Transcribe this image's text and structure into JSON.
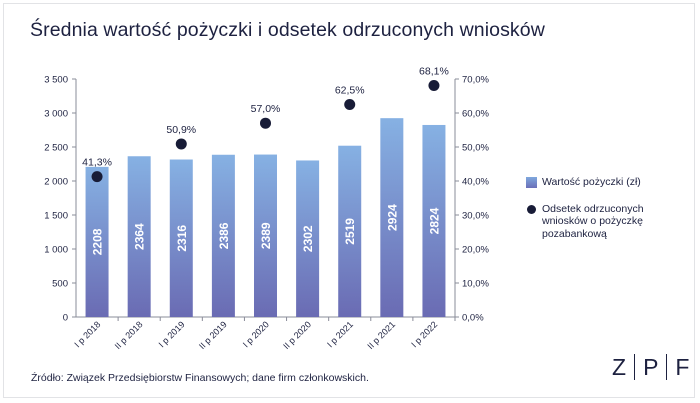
{
  "title": "Średnia wartość pożyczki i odsetek odrzuconych wniosków",
  "source": "Źródło: Związek Przedsiębiorstw Finansowych; dane firm członkowskich.",
  "logo": {
    "letters": [
      "Z",
      "P",
      "F"
    ]
  },
  "colors": {
    "bar_top": "#86b1e3",
    "bar_bottom": "#6a6bb3",
    "dot": "#181c37",
    "text": "#1d2140",
    "axis": "#8a8c99"
  },
  "chart_data": {
    "type": "bar",
    "categories": [
      "I p 2018",
      "II p 2018",
      "I p 2019",
      "II p 2019",
      "I p 2020",
      "II p 2020",
      "I p 2021",
      "II p 2021",
      "I p 2022"
    ],
    "series": [
      {
        "name": "Wartość pożyczki (zł)",
        "type": "bar",
        "axis": "left",
        "values": [
          2208,
          2364,
          2316,
          2386,
          2389,
          2302,
          2519,
          2924,
          2824
        ],
        "labels": [
          "2208",
          "2364",
          "2316",
          "2386",
          "2389",
          "2302",
          "2519",
          "2924",
          "2824"
        ]
      },
      {
        "name": "Odsetek odrzuconych wniosków o pożyczkę pozabankową",
        "type": "scatter",
        "axis": "right",
        "values": [
          41.3,
          null,
          50.9,
          null,
          57.0,
          null,
          62.5,
          null,
          68.1
        ],
        "labels": [
          "41,3%",
          null,
          "50,9%",
          null,
          "57,0%",
          null,
          "62,5%",
          null,
          "68,1%"
        ]
      }
    ],
    "y_left": {
      "ylim": [
        0,
        3500
      ],
      "ticks": [
        0,
        500,
        1000,
        1500,
        2000,
        2500,
        3000,
        3500
      ],
      "tick_labels": [
        "0",
        "500",
        "1 000",
        "1 500",
        "2 000",
        "2 500",
        "3 000",
        "3 500"
      ]
    },
    "y_right": {
      "ylim": [
        0,
        70
      ],
      "ticks": [
        0,
        10,
        20,
        30,
        40,
        50,
        60,
        70
      ],
      "tick_labels": [
        "0,0%",
        "10,0%",
        "20,0%",
        "30,0%",
        "40,0%",
        "50,0%",
        "60,0%",
        "70,0%"
      ]
    },
    "legend": {
      "position": "right",
      "entries": [
        "Wartość pożyczki (zł)",
        "Odsetek odrzuconych wniosków o pożyczkę pozabankową"
      ],
      "entry_lines": [
        [
          "Wartość pożyczki (zł)"
        ],
        [
          "Odsetek odrzuconych",
          "wniosków o pożyczkę",
          "pozabankową"
        ]
      ]
    },
    "grid": false
  }
}
